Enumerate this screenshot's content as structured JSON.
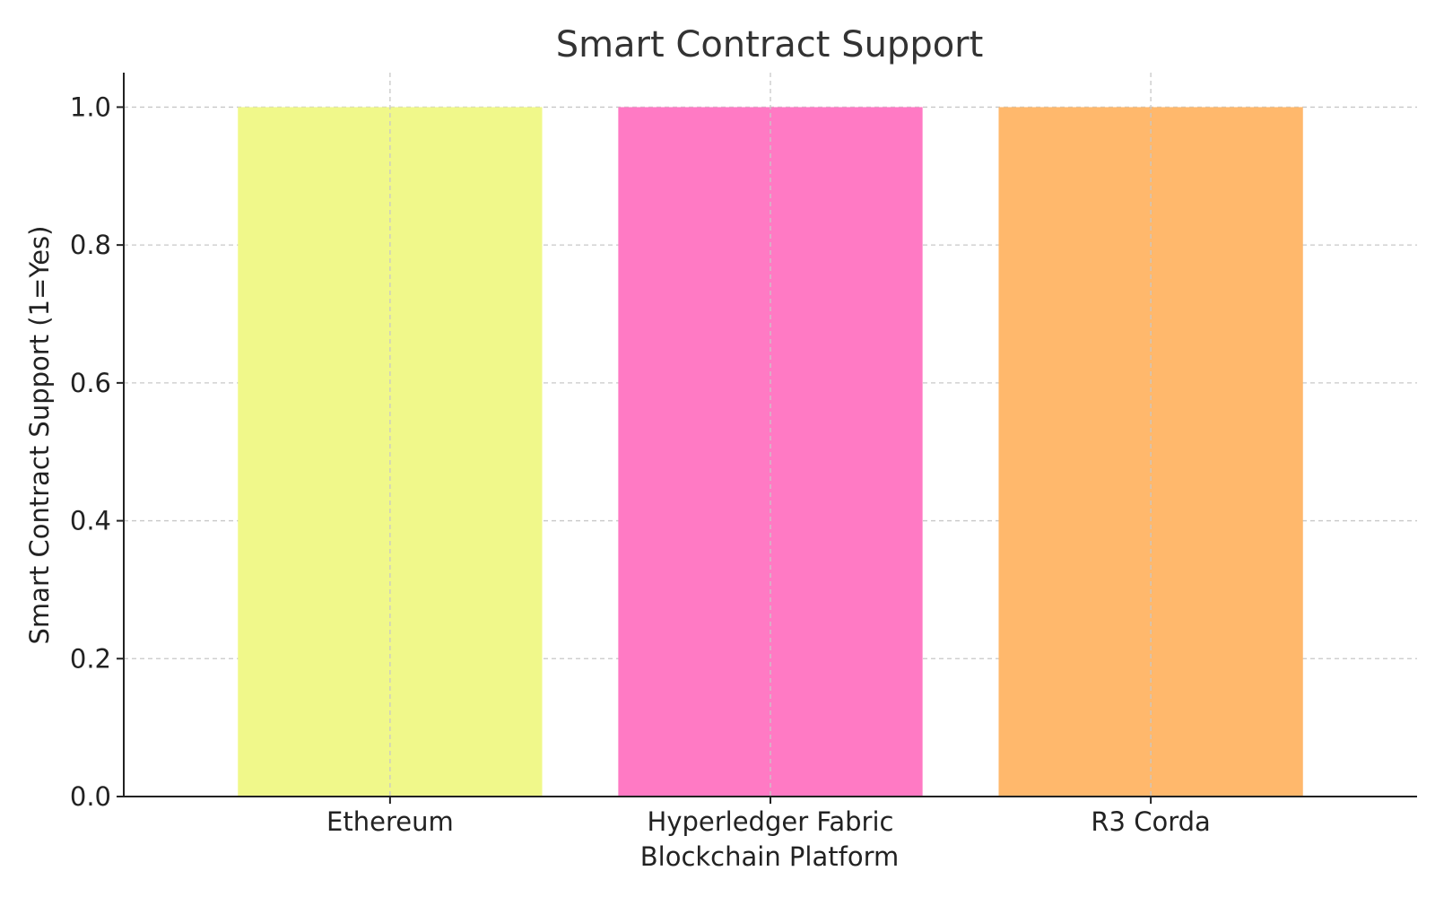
{
  "chart_data": {
    "type": "bar",
    "title": "Smart Contract Support",
    "xlabel": "Blockchain Platform",
    "ylabel": "Smart Contract Support (1=Yes)",
    "categories": [
      "Ethereum",
      "Hyperledger Fabric",
      "R3 Corda"
    ],
    "values": [
      1,
      1,
      1
    ],
    "colors": [
      "#f0f88a",
      "#ff7ac4",
      "#ffb86c"
    ],
    "ylim": [
      0,
      1.05
    ],
    "yticks": [
      0.0,
      0.2,
      0.4,
      0.6,
      0.8,
      1.0
    ],
    "ytick_labels": [
      "0.0",
      "0.2",
      "0.4",
      "0.6",
      "0.8",
      "1.0"
    ],
    "grid": true,
    "legend": false
  }
}
